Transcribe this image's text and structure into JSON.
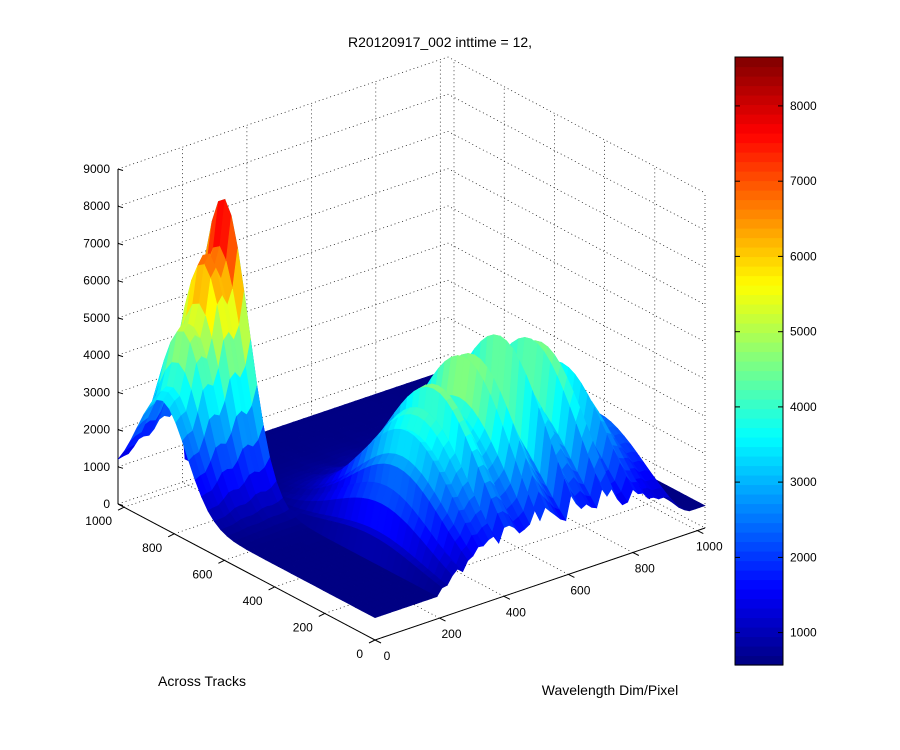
{
  "chart_data": {
    "type": "surface",
    "title": "R20120917_002 inttime = 12,",
    "xlabel": "Wavelength Dim/Pixel",
    "ylabel": "Across Tracks",
    "zlabel": "",
    "x_ticks": [
      "0",
      "200",
      "400",
      "600",
      "800",
      "1000"
    ],
    "y_ticks": [
      "0",
      "200",
      "400",
      "600",
      "800",
      "1000"
    ],
    "z_ticks": [
      "0",
      "1000",
      "2000",
      "3000",
      "4000",
      "5000",
      "6000",
      "7000",
      "8000",
      "9000"
    ],
    "xlim": [
      0,
      1024
    ],
    "ylim": [
      0,
      1024
    ],
    "zlim": [
      0,
      9000
    ],
    "grid": true,
    "colormap": "jet",
    "colorbar": {
      "range": [
        570,
        8650
      ],
      "ticks": [
        "1000",
        "2000",
        "3000",
        "4000",
        "5000",
        "6000",
        "7000",
        "8000"
      ],
      "placement": "right"
    },
    "surface_features": {
      "background_level": 600,
      "peak_1": {
        "across_track_center": 850,
        "across_track_width": 140,
        "wavelength_end": 200,
        "peak_value": 8650
      },
      "peak_2": {
        "across_track_center": 280,
        "across_track_width": 260,
        "wavelength_range": [
          200,
          1000
        ],
        "max_value": 5500
      }
    }
  }
}
